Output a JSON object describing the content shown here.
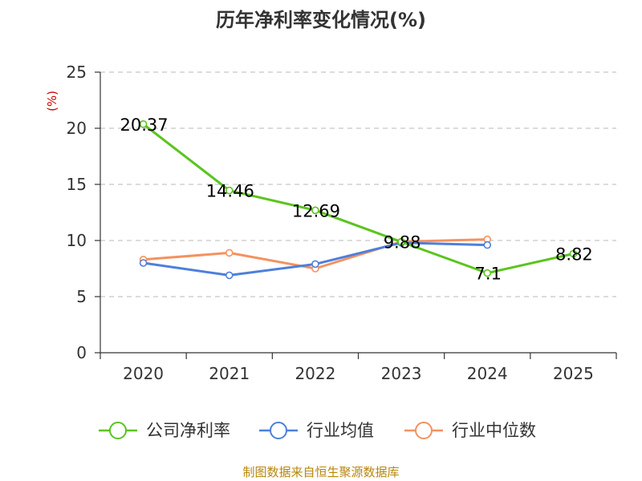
{
  "chart_data": {
    "type": "line",
    "title": "历年净利率变化情况(%)",
    "ylabel": "(%)",
    "categories": [
      "2020",
      "2021",
      "2022",
      "2023",
      "2024",
      "2025"
    ],
    "yticks": [
      "0",
      "5",
      "10",
      "15",
      "20",
      "25"
    ],
    "ylim": [
      0,
      25
    ],
    "grid": true,
    "legend_position": "bottom",
    "series": [
      {
        "name": "公司净利率",
        "color": "#5bc41e",
        "values": [
          20.37,
          14.46,
          12.69,
          9.88,
          7.1,
          8.82
        ],
        "labels": [
          "20.37",
          "14.46",
          "12.69",
          "9.88",
          "7.1",
          "8.82"
        ]
      },
      {
        "name": "行业均值",
        "color": "#4e7fdc",
        "values": [
          8.0,
          6.9,
          7.9,
          9.8,
          9.6,
          null
        ]
      },
      {
        "name": "行业中位数",
        "color": "#f4925f",
        "values": [
          8.3,
          8.9,
          7.5,
          9.9,
          10.1,
          null
        ]
      }
    ]
  },
  "source": "制图数据来自恒生聚源数据库"
}
